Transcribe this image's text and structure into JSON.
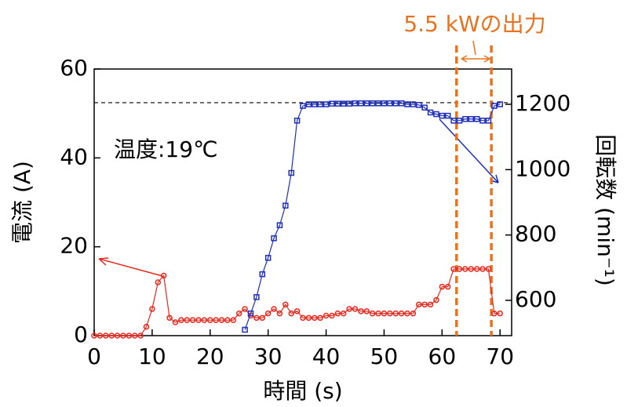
{
  "chart_data": {
    "type": "line",
    "xlabel": "時間 (s)",
    "ylabel": "電流 (A)",
    "y2label": "回転数 (min⁻¹)",
    "annotations": [
      "温度:19℃",
      "5.5 kWの出力"
    ],
    "xlim": [
      0,
      72
    ],
    "xticks": [
      0,
      10,
      20,
      30,
      40,
      50,
      60,
      70
    ],
    "ylim": [
      0,
      60
    ],
    "yticks": [
      0,
      20,
      40,
      60
    ],
    "y2lim": [
      492,
      1308
    ],
    "y2ticks": [
      600,
      800,
      1000,
      1200
    ],
    "reference_line": {
      "value": 1205,
      "axis": "y2",
      "color": "#000"
    },
    "highlight_x": [
      62.5,
      68.5
    ],
    "highlight_color": "#e8731f",
    "series": [
      {
        "name": "電流",
        "color": "#e8271c",
        "marker": "circle",
        "axis": "y",
        "x": [
          0,
          1,
          2,
          3,
          4,
          5,
          6,
          7,
          8,
          9,
          10,
          11,
          12,
          13,
          14,
          15,
          16,
          17,
          18,
          19,
          20,
          21,
          22,
          23,
          24,
          25,
          26,
          27,
          28,
          29,
          30,
          31,
          32,
          33,
          34,
          35,
          36,
          37,
          38,
          39,
          40,
          41,
          42,
          43,
          44,
          45,
          46,
          47,
          48,
          49,
          50,
          51,
          52,
          53,
          54,
          55,
          56,
          57,
          58,
          59,
          60,
          61,
          62,
          63,
          64,
          65,
          66,
          67,
          68,
          69,
          70
        ],
        "values": [
          0,
          0,
          0,
          0,
          0,
          0,
          0,
          0,
          0,
          2,
          6,
          12,
          13.5,
          4,
          3,
          3.5,
          3.5,
          3.5,
          3.5,
          3.5,
          3.5,
          3.5,
          3.5,
          3.5,
          3.5,
          5,
          6,
          4.5,
          4,
          4,
          5,
          6,
          5,
          7,
          5,
          5.5,
          4,
          4,
          4,
          4,
          4.5,
          4.5,
          5,
          5,
          6,
          6,
          5.5,
          5.5,
          5,
          5,
          5,
          5,
          5,
          5,
          5,
          5,
          7,
          7,
          7,
          8,
          11,
          11,
          15,
          15,
          15,
          15,
          15,
          15,
          15,
          5,
          5
        ]
      },
      {
        "name": "回転数",
        "color": "#1f2fb8",
        "marker": "square",
        "axis": "y2",
        "x": [
          26,
          27,
          28,
          29,
          30,
          31,
          32,
          33,
          34,
          35,
          36,
          37,
          38,
          39,
          40,
          41,
          42,
          43,
          44,
          45,
          46,
          47,
          48,
          49,
          50,
          51,
          52,
          53,
          54,
          55,
          56,
          57,
          58,
          59,
          60,
          61,
          62,
          63,
          64,
          65,
          66,
          67,
          68,
          69,
          70
        ],
        "values": [
          510,
          560,
          610,
          680,
          730,
          790,
          830,
          890,
          990,
          1150,
          1195,
          1200,
          1200,
          1200,
          1200,
          1202,
          1202,
          1202,
          1202,
          1203,
          1203,
          1203,
          1203,
          1203,
          1203,
          1203,
          1203,
          1203,
          1200,
          1200,
          1198,
          1190,
          1175,
          1170,
          1165,
          1165,
          1150,
          1150,
          1155,
          1155,
          1155,
          1150,
          1150,
          1195,
          1200
        ]
      }
    ]
  }
}
